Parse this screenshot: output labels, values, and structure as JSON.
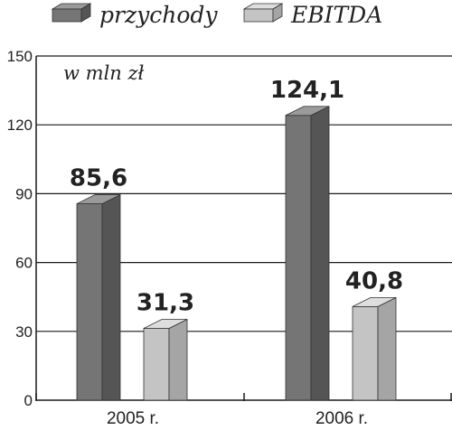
{
  "chart_data": {
    "type": "bar",
    "unit_label": "w mln zł",
    "categories": [
      "2005 r.",
      "2006 r."
    ],
    "series": [
      {
        "name": "przychody",
        "values": [
          85.6,
          124.1
        ],
        "value_labels": [
          "85,6",
          "124,1"
        ],
        "color": "#757575",
        "color_top": "#9a9a9a",
        "color_side": "#555555"
      },
      {
        "name": "EBITDA",
        "values": [
          31.3,
          40.8
        ],
        "value_labels": [
          "31,3",
          "40,8"
        ],
        "color": "#c4c4c4",
        "color_top": "#dedede",
        "color_side": "#a5a5a5"
      }
    ],
    "yticks": [
      0,
      30,
      60,
      90,
      120,
      150
    ],
    "ytick_labels": [
      "0",
      "30",
      "60",
      "90",
      "120",
      "150"
    ],
    "ylim": [
      0,
      150
    ],
    "grid": true,
    "legend_position": "top"
  }
}
